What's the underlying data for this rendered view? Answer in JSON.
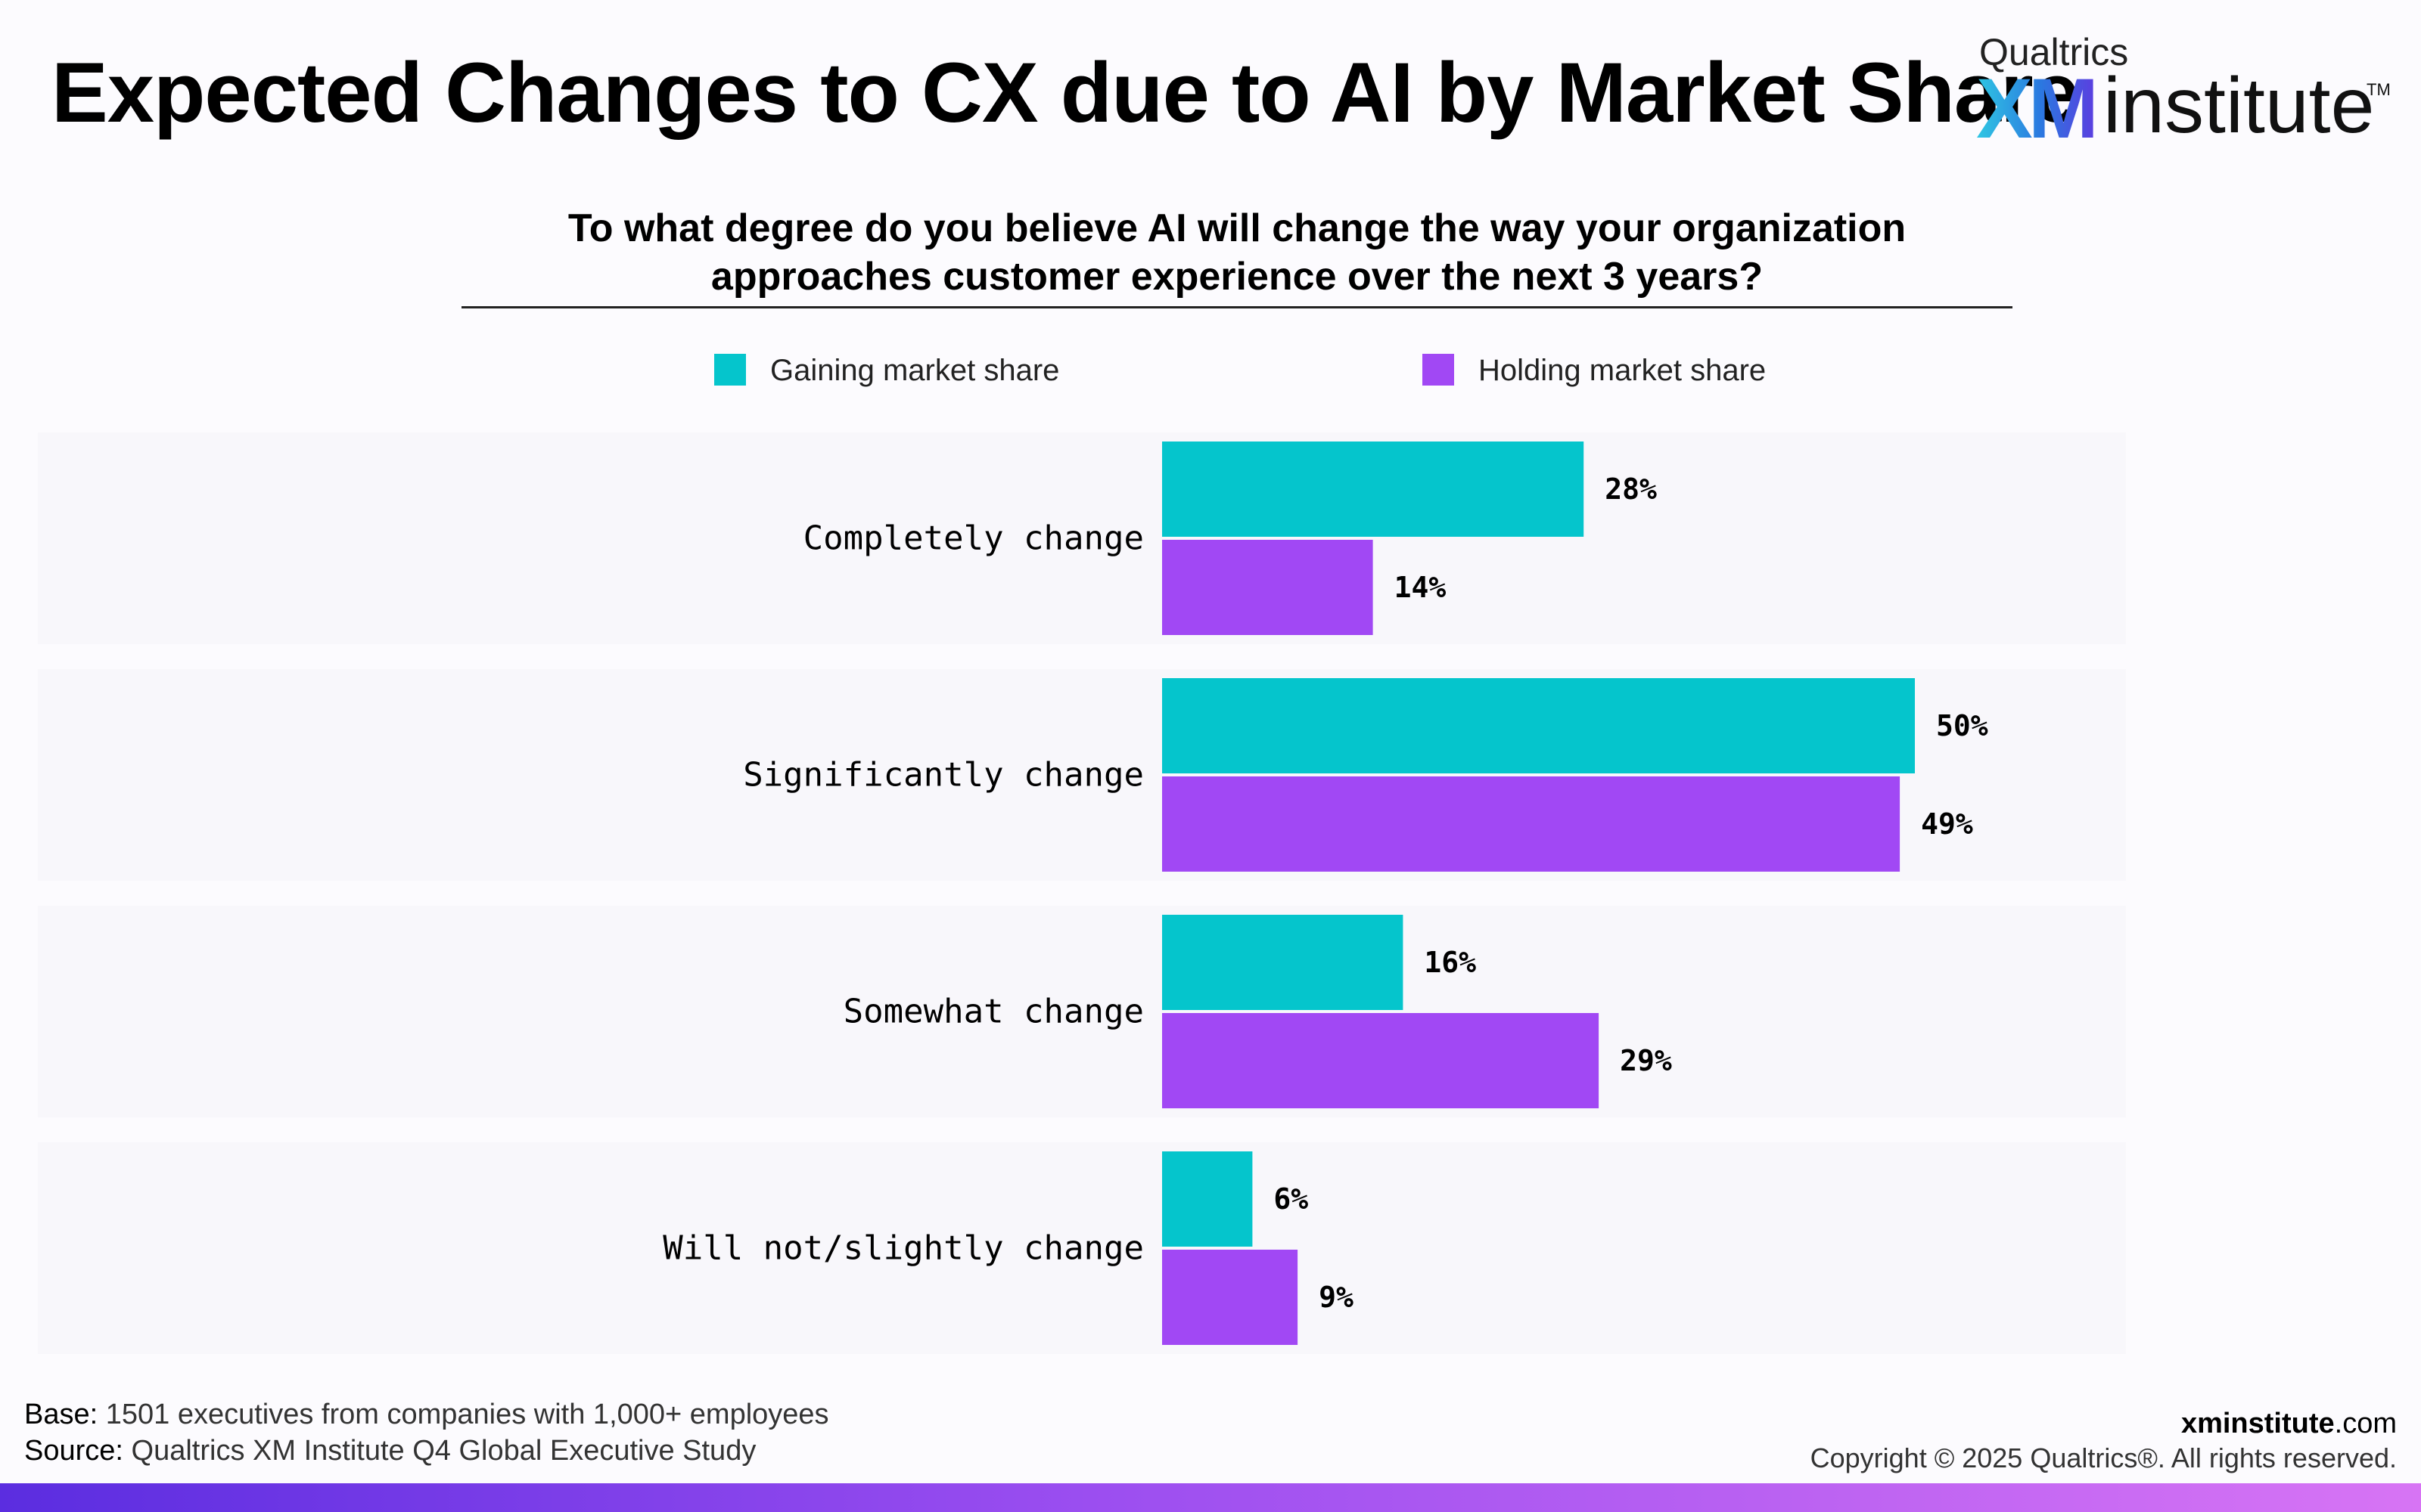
{
  "header": {
    "title": "Expected Changes to CX due to AI by Market Share",
    "logo_top": "Qualtrics",
    "logo_xm": "XM",
    "logo_institute": "institute",
    "logo_tm": "TM"
  },
  "chart_data": {
    "type": "bar",
    "orientation": "horizontal",
    "title": "To what degree do you believe AI will change the way your organization approaches customer experience over the next 3 years?",
    "categories": [
      "Completely change",
      "Significantly change",
      "Somewhat change",
      "Will not/slightly change"
    ],
    "series": [
      {
        "name": "Gaining market share",
        "color": "#05c5cc",
        "values": [
          28,
          50,
          16,
          6
        ]
      },
      {
        "name": "Holding market share",
        "color": "#a148f4",
        "values": [
          14,
          49,
          29,
          9
        ]
      }
    ],
    "value_suffix": "%",
    "xlim": [
      0,
      50
    ],
    "legend": "top",
    "grid": false
  },
  "footer": {
    "base_label": "Base:",
    "base_text": "1501 executives from companies with 1,000+ employees",
    "source_label": "Source:",
    "source_text": "Qualtrics XM Institute Q4 Global Executive Study",
    "site_bold": "xminstitute",
    "site_rest": ".com",
    "copyright": "Copyright © 2025 Qualtrics®. All rights reserved."
  }
}
